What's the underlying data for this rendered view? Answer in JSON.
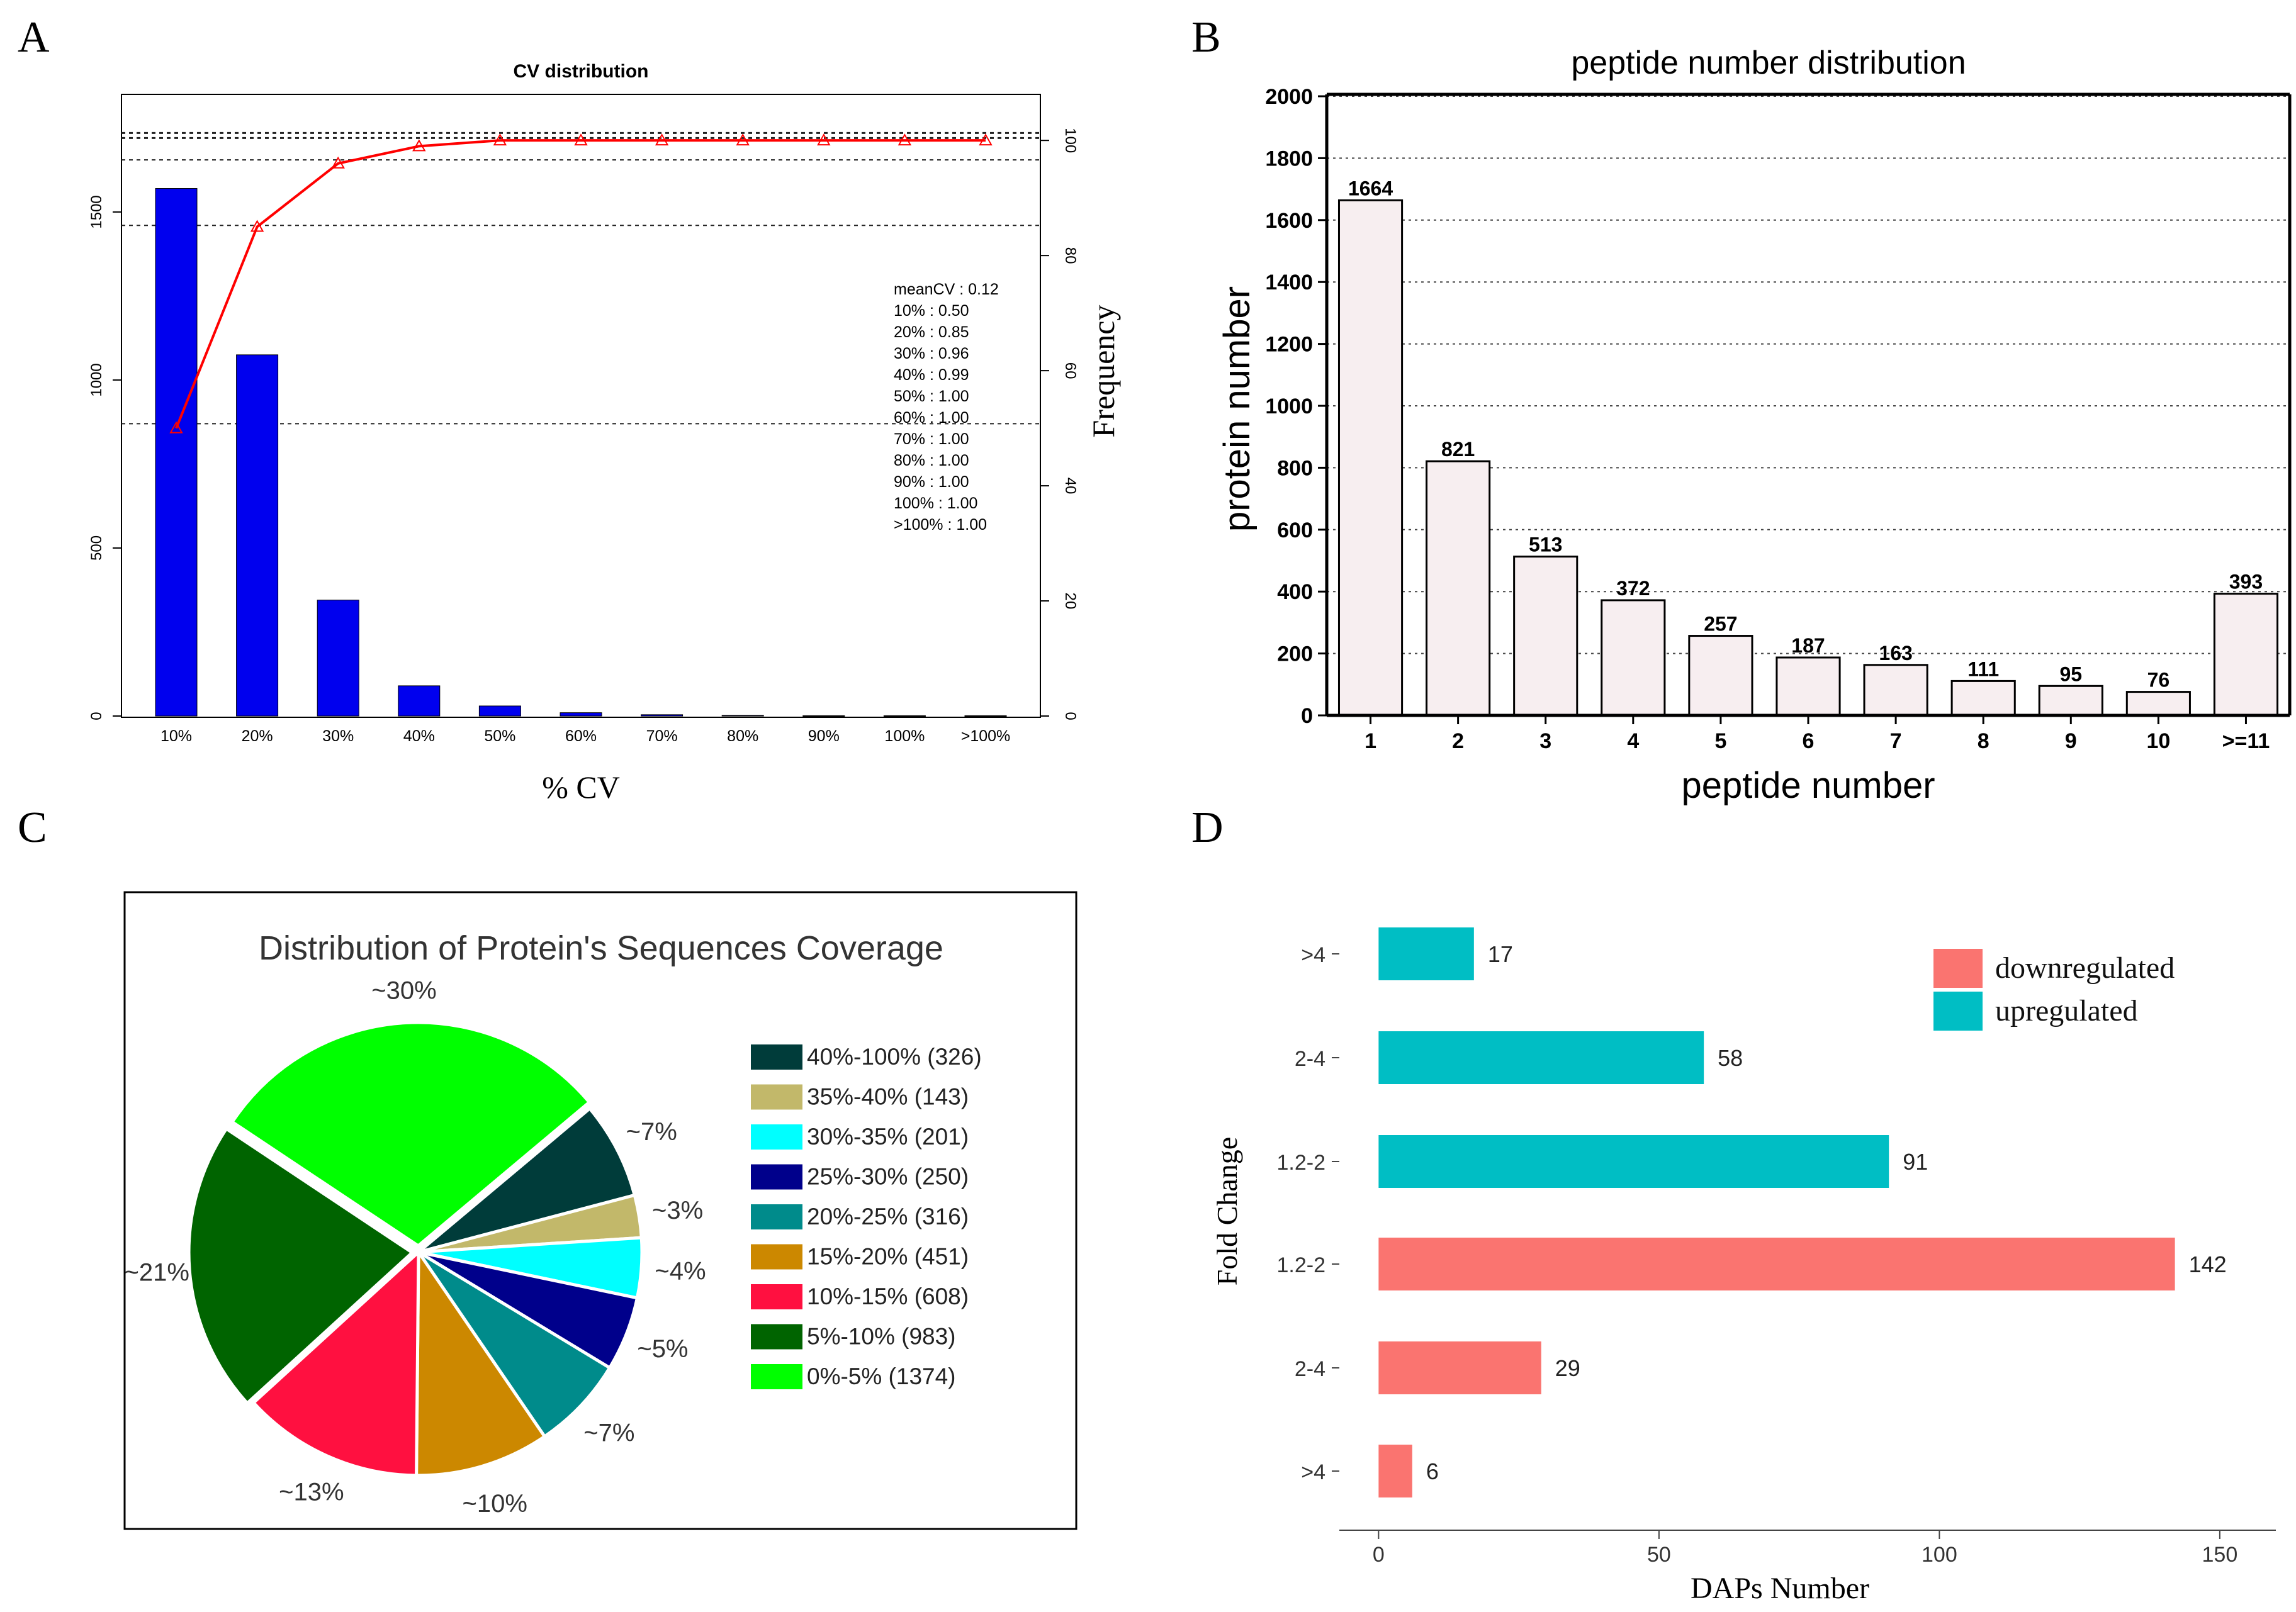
{
  "panel_labels": [
    "A",
    "B",
    "C",
    "D"
  ],
  "chart_data": [
    {
      "id": "A",
      "type": "bar+line",
      "title": "CV distribution",
      "xlabel": "% CV",
      "ylabel_right": "Frequency",
      "categories": [
        "10%",
        "20%",
        "30%",
        "40%",
        "50%",
        "60%",
        "70%",
        "80%",
        "90%",
        "100%",
        ">100%"
      ],
      "bar_values": [
        1570,
        1075,
        345,
        90,
        30,
        10,
        4,
        2,
        1,
        1,
        1
      ],
      "cumulative_percent": [
        50,
        85,
        96,
        99,
        100,
        100,
        100,
        100,
        100,
        100,
        100
      ],
      "ylim_left": [
        0,
        1850
      ],
      "yticks_left": [
        0,
        500,
        1000,
        1500
      ],
      "ylim_right": [
        0,
        108
      ],
      "yticks_right": [
        0,
        20,
        40,
        60,
        80,
        100
      ],
      "ref_lines_left": [
        870,
        1460,
        1655,
        1720,
        1735
      ],
      "bar_color": "#0000ee",
      "line_color": "#ff0000",
      "annotation": [
        "meanCV : 0.12",
        "10% : 0.50",
        "20% : 0.85",
        "30% : 0.96",
        "40% : 0.99",
        "50% : 1.00",
        "60% : 1.00",
        "70% : 1.00",
        "80% : 1.00",
        "90% : 1.00",
        "100% : 1.00",
        ">100% : 1.00"
      ]
    },
    {
      "id": "B",
      "type": "bar",
      "title": "peptide number distribution",
      "xlabel": "peptide number",
      "ylabel": "protein number",
      "categories": [
        "1",
        "2",
        "3",
        "4",
        "5",
        "6",
        "7",
        "8",
        "9",
        "10",
        ">=11"
      ],
      "values": [
        1664,
        821,
        513,
        372,
        257,
        187,
        163,
        111,
        95,
        76,
        393
      ],
      "ylim": [
        0,
        2000
      ],
      "yticks": [
        0,
        200,
        400,
        600,
        800,
        1000,
        1200,
        1400,
        1600,
        1800,
        2000
      ],
      "bar_color": "#f7eef0"
    },
    {
      "id": "C",
      "type": "pie",
      "title": "Distribution of Protein's Sequences Coverage",
      "slices": [
        {
          "legend": "40%-100% (326)",
          "value": 326,
          "label": "~7%",
          "color": "#003c3a"
        },
        {
          "legend": "35%-40% (143)",
          "value": 143,
          "label": "~3%",
          "color": "#c2b86a"
        },
        {
          "legend": "30%-35% (201)",
          "value": 201,
          "label": "~4%",
          "color": "#00ffff"
        },
        {
          "legend": "25%-30% (250)",
          "value": 250,
          "label": "~5%",
          "color": "#00008b"
        },
        {
          "legend": "20%-25% (316)",
          "value": 316,
          "label": "~7%",
          "color": "#008b8b"
        },
        {
          "legend": "15%-20% (451)",
          "value": 451,
          "label": "~10%",
          "color": "#cc8800"
        },
        {
          "legend": "10%-15% (608)",
          "value": 608,
          "label": "~13%",
          "color": "#ff1040"
        },
        {
          "legend": "5%-10% (983)",
          "value": 983,
          "label": "~21%",
          "color": "#006400"
        },
        {
          "legend": "0%-5% (1374)",
          "value": 1374,
          "label": "~30%",
          "color": "#00ff00"
        }
      ]
    },
    {
      "id": "D",
      "type": "horizontal-bar",
      "xlabel": "DAPs Number",
      "ylabel": "Fold Change",
      "categories": [
        ">4",
        "2-4",
        "1.2-2",
        "1.2-2",
        "2-4",
        ">4"
      ],
      "values": [
        17,
        58,
        91,
        142,
        29,
        6
      ],
      "groups": [
        "upregulated",
        "upregulated",
        "upregulated",
        "downregulated",
        "downregulated",
        "downregulated"
      ],
      "xlim": [
        -7,
        160
      ],
      "xticks": [
        0,
        50,
        100,
        150
      ],
      "legend": [
        {
          "label": "downregulated",
          "color": "#fa7470"
        },
        {
          "label": "upregulated",
          "color": "#00bec4"
        }
      ]
    }
  ]
}
